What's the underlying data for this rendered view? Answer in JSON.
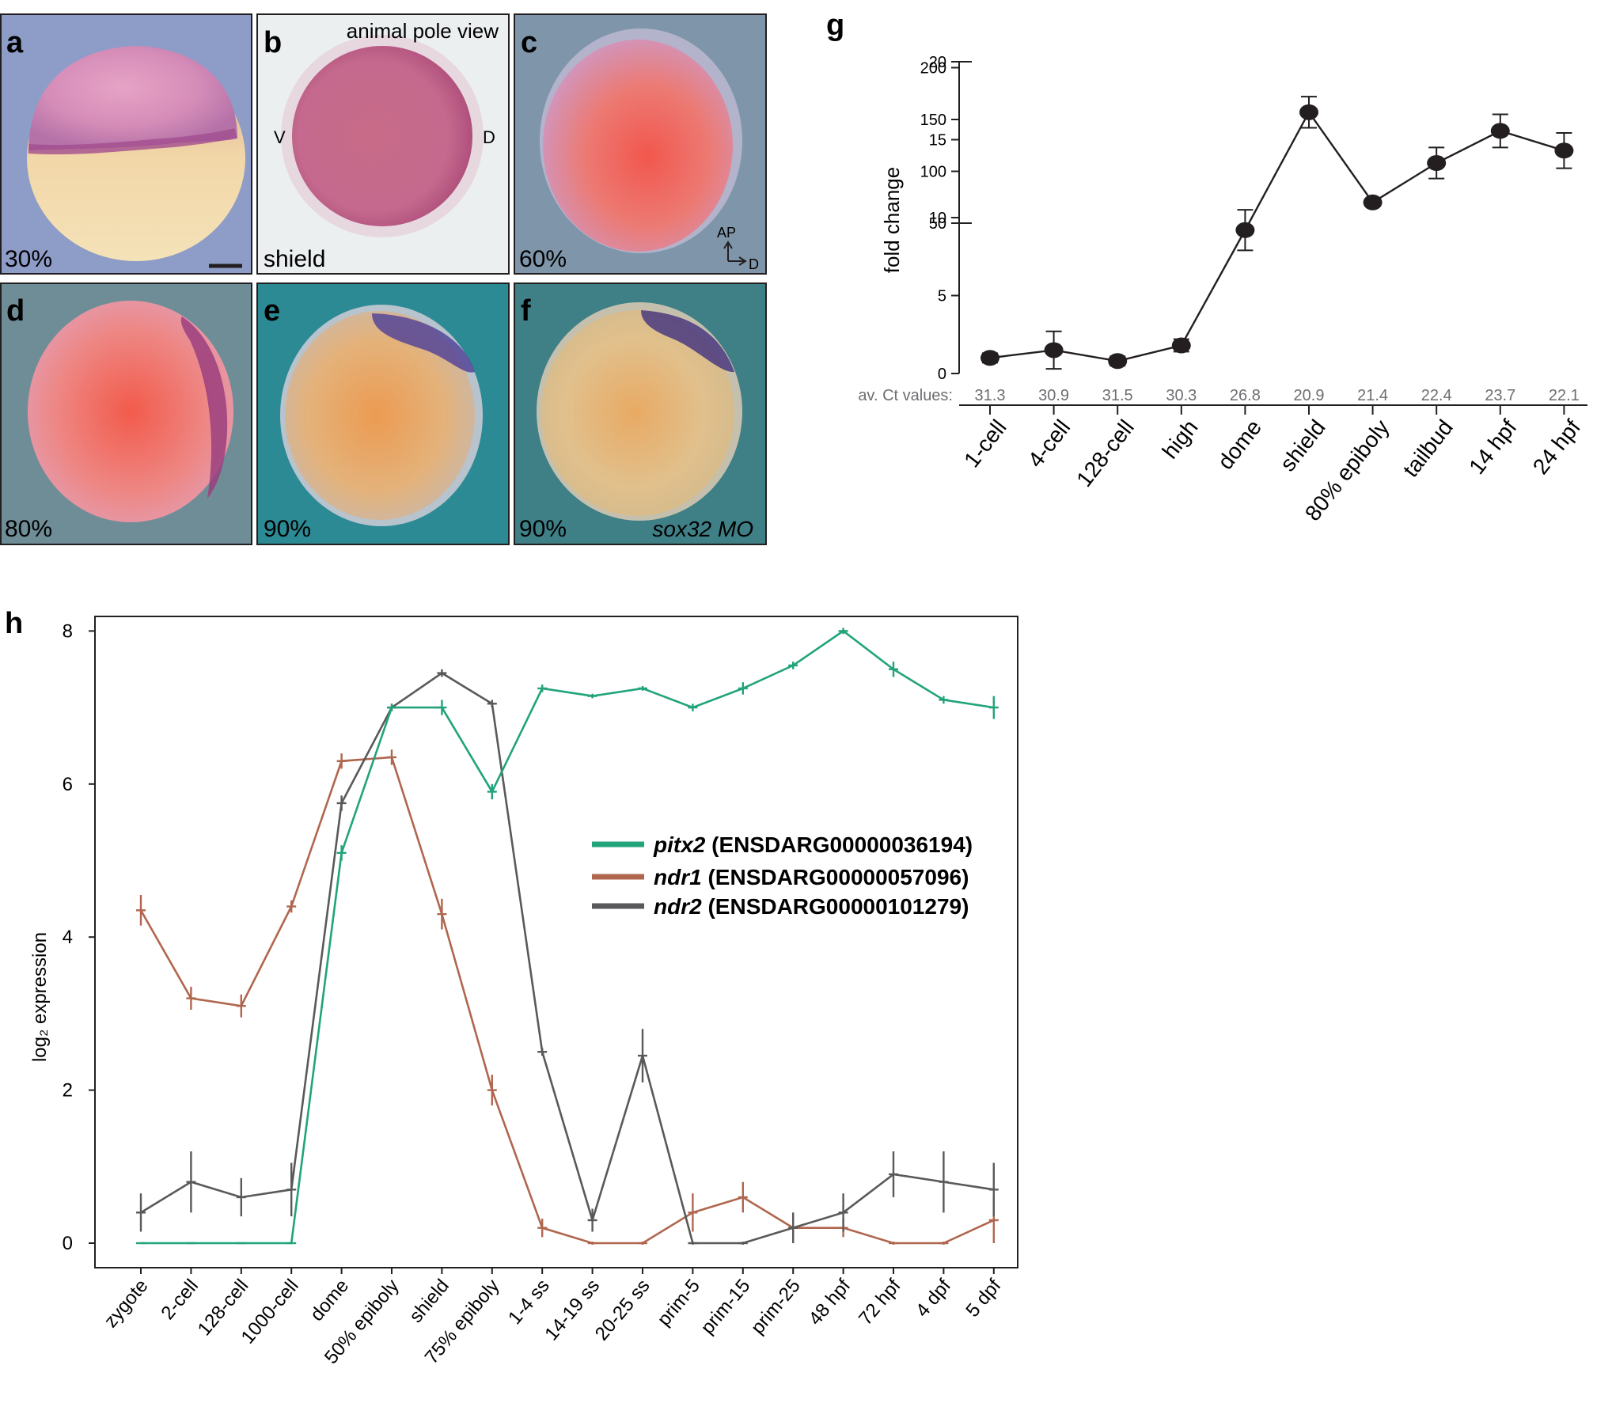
{
  "panels": {
    "a": {
      "letter": "a",
      "stage": "30%"
    },
    "b": {
      "letter": "b",
      "stage": "shield",
      "caption": "animal pole view",
      "left_mark": "V",
      "right_mark": "D"
    },
    "c": {
      "letter": "c",
      "stage": "60%",
      "axis_ap": "AP",
      "axis_d": "D"
    },
    "d": {
      "letter": "d",
      "stage": "80%"
    },
    "e": {
      "letter": "e",
      "stage": "90%"
    },
    "f": {
      "letter": "f",
      "stage": "90%",
      "treatment": "sox32 MO"
    }
  },
  "chart_data": [
    {
      "panel": "g",
      "type": "line",
      "ylabel": "fold change",
      "axis_break": true,
      "ylim_lower": [
        0,
        20
      ],
      "ylim_upper": [
        50,
        200
      ],
      "yticks_lower": [
        "0",
        "5",
        "10",
        "15",
        "20"
      ],
      "yticks_upper": [
        "50",
        "100",
        "150",
        "200"
      ],
      "categories": [
        "1-cell",
        "4-cell",
        "128-cell",
        "high",
        "dome",
        "shield",
        "80% epiboly",
        "tailbud",
        "14 hpf",
        "24 hpf"
      ],
      "values": [
        1.0,
        1.5,
        0.8,
        1.8,
        9.2,
        157,
        70,
        108,
        139,
        120
      ],
      "errors": [
        0.3,
        1.2,
        0.3,
        0.4,
        1.3,
        15,
        3,
        15,
        16,
        17
      ],
      "ct_label": "av. Ct values:",
      "ct_values": [
        "31.3",
        "30.9",
        "31.5",
        "30.3",
        "26.8",
        "20.9",
        "21.4",
        "22.4",
        "23.7",
        "22.1"
      ]
    },
    {
      "panel": "h",
      "type": "line",
      "ylabel": "log₂ expression",
      "ylim": [
        -0.3,
        8.2
      ],
      "yticks": [
        "0",
        "2",
        "4",
        "6",
        "8"
      ],
      "categories": [
        "zygote",
        "2-cell",
        "128-cell",
        "1000-cell",
        "dome",
        "50% epiboly",
        "shield",
        "75% epiboly",
        "1-4 ss",
        "14-19 ss",
        "20-25 ss",
        "prim-5",
        "prim-15",
        "prim-25",
        "48 hpf",
        "72 hpf",
        "4 dpf",
        "5 dpf"
      ],
      "series": [
        {
          "name": "pitx2",
          "id": "(ENSDARG00000036194)",
          "color": "#21a37b",
          "values": [
            0,
            0,
            0,
            0,
            5.1,
            7.0,
            7.0,
            5.9,
            7.25,
            7.15,
            7.25,
            7.0,
            7.25,
            7.55,
            8.0,
            7.5,
            7.1,
            7.0
          ],
          "errors": [
            0,
            0,
            0,
            0,
            0.1,
            0.05,
            0.1,
            0.1,
            0.05,
            0.03,
            0.03,
            0.05,
            0.08,
            0.05,
            0.04,
            0.1,
            0.05,
            0.15
          ]
        },
        {
          "name": "ndr1",
          "id": "(ENSDARG00000057096)",
          "color": "#b0664e",
          "values": [
            4.35,
            3.2,
            3.1,
            4.4,
            6.3,
            6.35,
            4.3,
            2.0,
            0.2,
            0,
            0,
            0.4,
            0.6,
            0.2,
            0.2,
            0,
            0,
            0.3
          ],
          "errors": [
            0.2,
            0.15,
            0.15,
            0.08,
            0.1,
            0.1,
            0.2,
            0.2,
            0.12,
            0.02,
            0.02,
            0.25,
            0.2,
            0.12,
            0.12,
            0.02,
            0.02,
            0.3
          ]
        },
        {
          "name": "ndr2",
          "id": "(ENSDARG00000101279)",
          "color": "#59595b",
          "values": [
            0.4,
            0.8,
            0.6,
            0.7,
            5.75,
            7.0,
            7.45,
            7.05,
            2.5,
            0.3,
            2.45,
            0,
            0,
            0.2,
            0.4,
            0.9,
            0.8,
            0.7
          ],
          "errors": [
            0.25,
            0.4,
            0.25,
            0.35,
            0.1,
            0.05,
            0.05,
            0.05,
            0.05,
            0.15,
            0.35,
            0.02,
            0.02,
            0.2,
            0.25,
            0.3,
            0.4,
            0.35
          ]
        }
      ]
    }
  ]
}
